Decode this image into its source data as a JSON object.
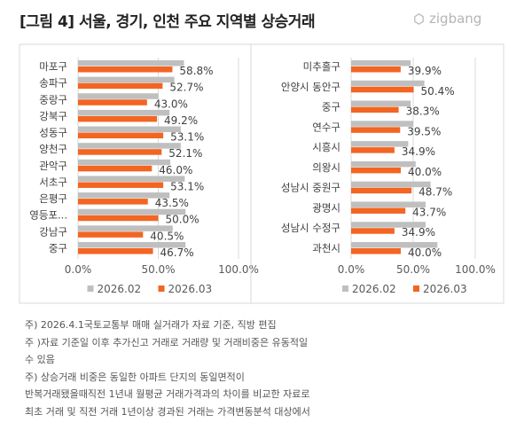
{
  "title": "[그림 4] 서울, 경기, 인천 주요 지역별 상승거래",
  "logo_text": "zigbang",
  "colors": {
    "prev": "#bfbfbf",
    "curr": "#f26522"
  },
  "chart_data": [
    {
      "type": "bar",
      "orientation": "horizontal",
      "categories": [
        "마포구",
        "송파구",
        "중랑구",
        "강북구",
        "성동구",
        "양천구",
        "관악구",
        "서초구",
        "은평구",
        "영등포...",
        "강남구",
        "중구"
      ],
      "series": [
        {
          "name": "2026.02",
          "values": [
            66,
            60,
            50,
            57,
            64,
            64,
            57.5,
            66.5,
            57,
            67,
            59,
            67
          ]
        },
        {
          "name": "2026.03",
          "values": [
            58.8,
            52.7,
            43.0,
            49.2,
            53.1,
            52.1,
            46.0,
            53.1,
            43.5,
            50.0,
            40.5,
            46.7
          ]
        }
      ],
      "data_labels": [
        "58.8%",
        "52.7%",
        "43.0%",
        "49.2%",
        "53.1%",
        "52.1%",
        "46.0%",
        "53.1%",
        "43.5%",
        "50.0%",
        "40.5%",
        "46.7%"
      ],
      "xticks": [
        "0.0%",
        "50.0%",
        "100.0%"
      ],
      "xlim": [
        0,
        100
      ],
      "legend": [
        "2026.02",
        "2026.03"
      ],
      "legend_position": "bottom"
    },
    {
      "type": "bar",
      "orientation": "horizontal",
      "categories": [
        "미추홀구",
        "안양시 동안구",
        "중구",
        "연수구",
        "시흥시",
        "의왕시",
        "성남시 중원구",
        "광명시",
        "성남시 수정구",
        "과천시"
      ],
      "series": [
        {
          "name": "2026.02",
          "values": [
            48,
            59,
            48,
            50,
            46,
            52,
            64,
            60,
            60,
            69.5
          ]
        },
        {
          "name": "2026.03",
          "values": [
            39.9,
            50.4,
            38.3,
            39.5,
            34.9,
            40.0,
            48.7,
            43.7,
            34.9,
            40.0
          ]
        }
      ],
      "data_labels": [
        "39.9%",
        "50.4%",
        "38.3%",
        "39.5%",
        "34.9%",
        "40.0%",
        "48.7%",
        "43.7%",
        "34.9%",
        "40.0%"
      ],
      "xticks": [
        "0.0%",
        "50.0%",
        "100.0%"
      ],
      "xlim": [
        0,
        100
      ],
      "legend": [
        "2026.02",
        "2026.03"
      ],
      "legend_position": "bottom"
    }
  ],
  "notes": [
    "주) 2026.4.1국토교통부 매매 실거래가 자료 기준, 직방 편집",
    "주 )자료 기준일 이후 추가신고 거래로 거래량 및 거래비중은 유동적일",
    "수 있음",
    "주) 상승거래 비중은 동일한 아파트 단지의 동일면적이",
    "반복거래됐을때직전 1년내 월평균 거래가격과의 차이를 비교한 자료로",
    "최초 거래 및 직전 거래 1년이상 경과된 거래는 가격변동분석 대상에서"
  ]
}
